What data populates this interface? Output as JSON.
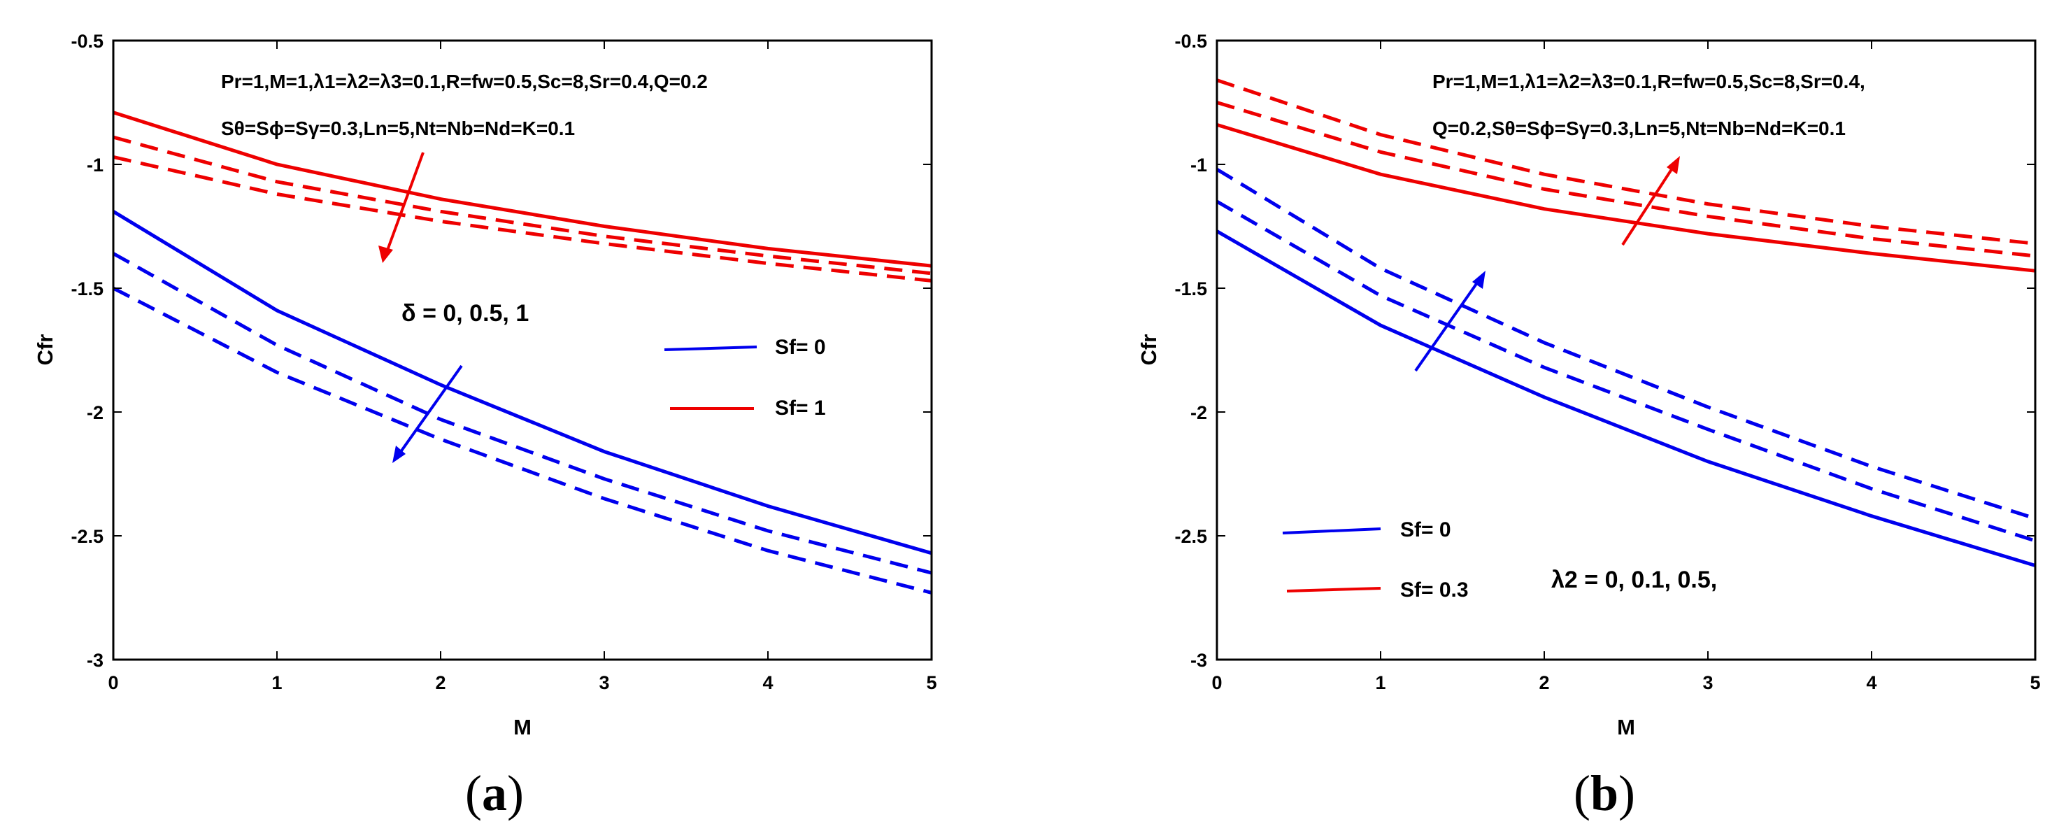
{
  "chart_data": [
    {
      "type": "line",
      "panel": "a",
      "caption_letter": "a",
      "xlabel": "M",
      "ylabel": "Cfr",
      "xlim": [
        0,
        5
      ],
      "ylim": [
        -3,
        -0.5
      ],
      "xticks": [
        0,
        1,
        2,
        3,
        4,
        5
      ],
      "xtick_labels": [
        "0",
        "1",
        "2",
        "3",
        "4",
        "5"
      ],
      "yticks": [
        -0.5,
        -1,
        -1.5,
        -2,
        -2.5,
        -3
      ],
      "ytick_labels": [
        "-0.5",
        "-1",
        "-1.5",
        "-2",
        "-2.5",
        "-3"
      ],
      "param_lines": [
        "Pr=1,M=1,λ1=λ2=λ3=0.1,R=fw=0.5,Sc=8,Sr=0.4,Q=0.2",
        "Sθ=Sϕ=Sγ=0.3,Ln=5,Nt=Nb=Nd=K=0.1"
      ],
      "varied_label": "δ = 0, 0.5, 1",
      "legend": [
        {
          "label": "Sf= 0",
          "color": "#0000ee"
        },
        {
          "label": "Sf= 1",
          "color": "#ee0000"
        }
      ],
      "x": [
        0,
        1,
        2,
        3,
        4,
        5
      ],
      "series": [
        {
          "name": "Sf=1, δ=0",
          "color": "#ee0000",
          "dash": "solid",
          "values": [
            -0.79,
            -1.0,
            -1.14,
            -1.25,
            -1.34,
            -1.41
          ]
        },
        {
          "name": "Sf=1, δ=0.5",
          "color": "#ee0000",
          "dash": "dashed",
          "values": [
            -0.89,
            -1.07,
            -1.19,
            -1.29,
            -1.37,
            -1.44
          ]
        },
        {
          "name": "Sf=1, δ=1",
          "color": "#ee0000",
          "dash": "dashed",
          "values": [
            -0.97,
            -1.12,
            -1.23,
            -1.32,
            -1.4,
            -1.47
          ]
        },
        {
          "name": "Sf=0, δ=0",
          "color": "#0000ee",
          "dash": "solid",
          "values": [
            -1.19,
            -1.59,
            -1.89,
            -2.16,
            -2.38,
            -2.57
          ]
        },
        {
          "name": "Sf=0, δ=0.5",
          "color": "#0000ee",
          "dash": "dashed",
          "values": [
            -1.36,
            -1.73,
            -2.03,
            -2.27,
            -2.48,
            -2.65
          ]
        },
        {
          "name": "Sf=0, δ=1",
          "color": "#0000ee",
          "dash": "dashed",
          "values": [
            -1.5,
            -1.84,
            -2.11,
            -2.35,
            -2.56,
            -2.73
          ]
        }
      ]
    },
    {
      "type": "line",
      "panel": "b",
      "caption_letter": "b",
      "xlabel": "M",
      "ylabel": "Cfr",
      "xlim": [
        0,
        5
      ],
      "ylim": [
        -3,
        -0.5
      ],
      "xticks": [
        0,
        1,
        2,
        3,
        4,
        5
      ],
      "xtick_labels": [
        "0",
        "1",
        "2",
        "3",
        "4",
        "5"
      ],
      "yticks": [
        -0.5,
        -1,
        -1.5,
        -2,
        -2.5,
        -3
      ],
      "ytick_labels": [
        "-0.5",
        "-1",
        "-1.5",
        "-2",
        "-2.5",
        "-3"
      ],
      "param_lines": [
        "Pr=1,M=1,λ1=λ2=λ3=0.1,R=fw=0.5,Sc=8,Sr=0.4,",
        "Q=0.2,Sθ=Sϕ=Sγ=0.3,Ln=5,Nt=Nb=Nd=K=0.1"
      ],
      "varied_label": "λ2 = 0, 0.1, 0.5,",
      "legend": [
        {
          "label": "Sf= 0",
          "color": "#0000ee"
        },
        {
          "label": "Sf= 0.3",
          "color": "#ee0000"
        }
      ],
      "x": [
        0,
        1,
        2,
        3,
        4,
        5
      ],
      "series": [
        {
          "name": "Sf=0.3, λ2=0",
          "color": "#ee0000",
          "dash": "solid",
          "values": [
            -0.84,
            -1.04,
            -1.18,
            -1.28,
            -1.36,
            -1.43
          ]
        },
        {
          "name": "Sf=0.3, λ2=0.1",
          "color": "#ee0000",
          "dash": "dashed",
          "values": [
            -0.75,
            -0.95,
            -1.1,
            -1.21,
            -1.3,
            -1.37
          ]
        },
        {
          "name": "Sf=0.3, λ2=0.5",
          "color": "#ee0000",
          "dash": "dashed",
          "values": [
            -0.66,
            -0.88,
            -1.04,
            -1.16,
            -1.25,
            -1.32
          ]
        },
        {
          "name": "Sf=0, λ2=0",
          "color": "#0000ee",
          "dash": "solid",
          "values": [
            -1.27,
            -1.65,
            -1.94,
            -2.2,
            -2.42,
            -2.62
          ]
        },
        {
          "name": "Sf=0, λ2=0.1",
          "color": "#0000ee",
          "dash": "dashed",
          "values": [
            -1.15,
            -1.53,
            -1.82,
            -2.07,
            -2.31,
            -2.52
          ]
        },
        {
          "name": "Sf=0, λ2=0.5",
          "color": "#0000ee",
          "dash": "dashed",
          "values": [
            -1.02,
            -1.42,
            -1.72,
            -1.98,
            -2.22,
            -2.43
          ]
        }
      ]
    }
  ]
}
